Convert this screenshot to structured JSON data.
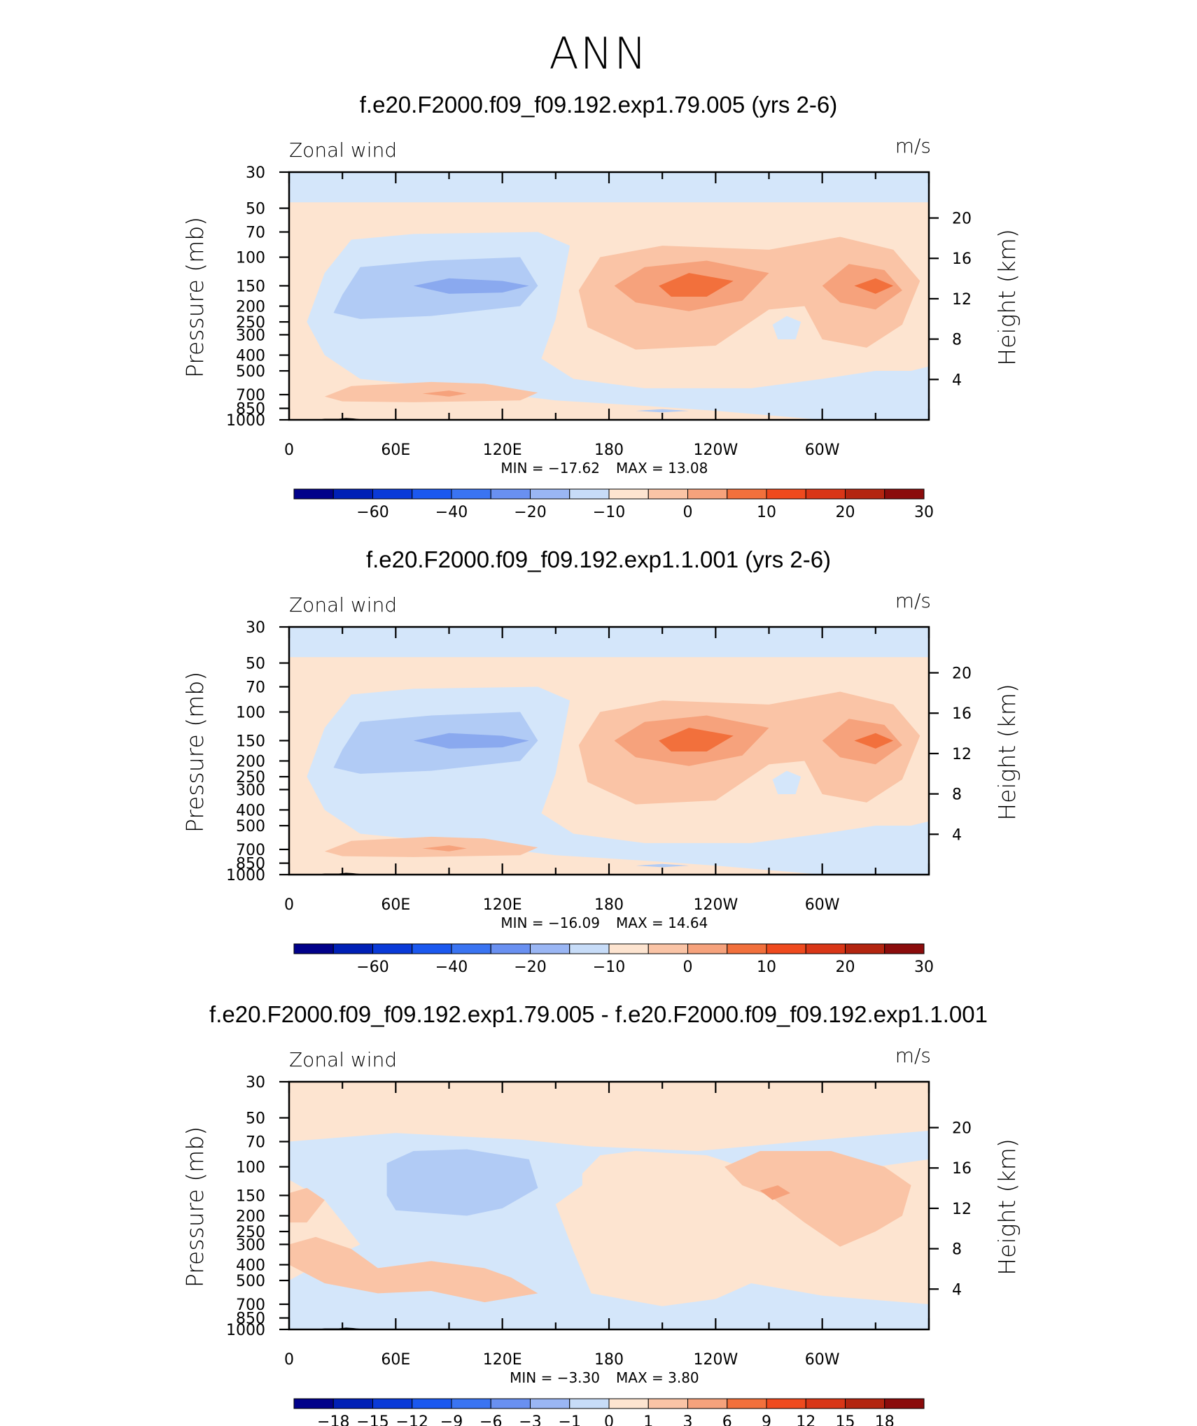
{
  "suptitle": "ANN",
  "colors": {
    "c_m4": "#d4e6fa",
    "c_m6": "#b1cbf5",
    "c_m8": "#8aa9ef",
    "c_p1": "#fde4d0",
    "c_p2": "#fac4a6",
    "c_p3": "#f6a27c",
    "c_p4": "#f2703c"
  },
  "panels": [
    {
      "title": "f.e20.F2000.f09_f09.192.exp1.79.005 (yrs 2-6)",
      "left_label": "Zonal wind",
      "right_label": "m/s",
      "min_text": "MIN =  −17.62",
      "max_text": "MAX =    13.08",
      "colorbar_labels": [
        "−60",
        "−40",
        "−20",
        "−10",
        "0",
        "10",
        "20",
        "30"
      ]
    },
    {
      "title": "f.e20.F2000.f09_f09.192.exp1.1.001 (yrs 2-6)",
      "left_label": "Zonal wind",
      "right_label": "m/s",
      "min_text": "MIN =  −16.09",
      "max_text": "MAX =    14.64",
      "colorbar_labels": [
        "−60",
        "−40",
        "−20",
        "−10",
        "0",
        "10",
        "20",
        "30"
      ]
    },
    {
      "title": "f.e20.F2000.f09_f09.192.exp1.79.005 - f.e20.F2000.f09_f09.192.exp1.1.001",
      "left_label": "Zonal wind",
      "right_label": "m/s",
      "min_text": "MIN =    −3.30",
      "max_text": "MAX =     3.80",
      "colorbar_labels": [
        "−18",
        "−15",
        "−12",
        "−9",
        "−6",
        "−3",
        "−1",
        "0",
        "1",
        "3",
        "6",
        "9",
        "12",
        "15",
        "18"
      ]
    }
  ],
  "chart_data": [
    {
      "type": "heatmap",
      "title": "f.e20.F2000.f09_f09.192.exp1.79.005 (yrs 2-6)",
      "field": "Zonal wind",
      "units": "m/s",
      "xlabel": "",
      "ylabel": "Pressure (mb)",
      "ylabel_right": "Height (km)",
      "x_tick_labels": [
        "0",
        "60E",
        "120E",
        "180",
        "120W",
        "60W"
      ],
      "y_ticks": [
        30,
        50,
        70,
        100,
        150,
        200,
        250,
        300,
        400,
        500,
        700,
        850,
        1000
      ],
      "y_right_ticks": [
        4,
        8,
        12,
        16,
        20
      ],
      "min": -17.62,
      "max": 13.08,
      "colorbar_levels": [
        -60,
        -40,
        -20,
        -10,
        0,
        10,
        20,
        30
      ],
      "features": [
        {
          "name": "upper easterly layer",
          "pressure_mb": [
            30,
            45
          ],
          "approx_value": -5
        },
        {
          "name": "easterly core",
          "longitude": "60E-120E",
          "pressure_mb": 150,
          "approx_value": -15
        },
        {
          "name": "westerly core",
          "longitude": "150W",
          "pressure_mb": 150,
          "approx_value": 12
        },
        {
          "name": "westerly core",
          "longitude": "40W",
          "pressure_mb": 150,
          "approx_value": 10
        },
        {
          "name": "low-level westerly",
          "longitude": "80E",
          "pressure_mb": 750,
          "approx_value": 5
        }
      ]
    },
    {
      "type": "heatmap",
      "title": "f.e20.F2000.f09_f09.192.exp1.1.001 (yrs 2-6)",
      "field": "Zonal wind",
      "units": "m/s",
      "xlabel": "",
      "ylabel": "Pressure (mb)",
      "ylabel_right": "Height (km)",
      "x_tick_labels": [
        "0",
        "60E",
        "120E",
        "180",
        "120W",
        "60W"
      ],
      "y_ticks": [
        30,
        50,
        70,
        100,
        150,
        200,
        250,
        300,
        400,
        500,
        700,
        850,
        1000
      ],
      "y_right_ticks": [
        4,
        8,
        12,
        16,
        20
      ],
      "min": -16.09,
      "max": 14.64,
      "colorbar_levels": [
        -60,
        -40,
        -20,
        -10,
        0,
        10,
        20,
        30
      ],
      "features": [
        {
          "name": "upper easterly layer",
          "pressure_mb": [
            30,
            45
          ],
          "approx_value": -5
        },
        {
          "name": "easterly core",
          "longitude": "60E-110E",
          "pressure_mb": 150,
          "approx_value": -15
        },
        {
          "name": "westerly core",
          "longitude": "150W",
          "pressure_mb": 150,
          "approx_value": 13
        },
        {
          "name": "westerly core",
          "longitude": "40W",
          "pressure_mb": 150,
          "approx_value": 12
        },
        {
          "name": "low-level westerly",
          "longitude": "80E",
          "pressure_mb": 750,
          "approx_value": 5
        }
      ]
    },
    {
      "type": "heatmap",
      "title": "f.e20.F2000.f09_f09.192.exp1.79.005 - f.e20.F2000.f09_f09.192.exp1.1.001",
      "field": "Zonal wind",
      "units": "m/s",
      "xlabel": "",
      "ylabel": "Pressure (mb)",
      "ylabel_right": "Height (km)",
      "x_tick_labels": [
        "0",
        "60E",
        "120E",
        "180",
        "120W",
        "60W"
      ],
      "y_ticks": [
        30,
        50,
        70,
        100,
        150,
        200,
        250,
        300,
        400,
        500,
        700,
        850,
        1000
      ],
      "y_right_ticks": [
        4,
        8,
        12,
        16,
        20
      ],
      "min": -3.3,
      "max": 3.8,
      "colorbar_levels": [
        -18,
        -15,
        -12,
        -9,
        -6,
        -3,
        -1,
        0,
        1,
        3,
        6,
        9,
        12,
        15,
        18
      ],
      "features": [
        {
          "name": "negative anomaly",
          "longitude": "40E-140E",
          "pressure_mb": [
            90,
            220
          ],
          "approx_value": -2
        },
        {
          "name": "positive anomaly",
          "longitude": "120W-0",
          "pressure_mb": [
            90,
            400
          ],
          "approx_value": 2
        },
        {
          "name": "positive anomaly",
          "longitude": "20E-130E",
          "pressure_mb": [
            350,
            800
          ],
          "approx_value": 1.5
        }
      ]
    }
  ]
}
